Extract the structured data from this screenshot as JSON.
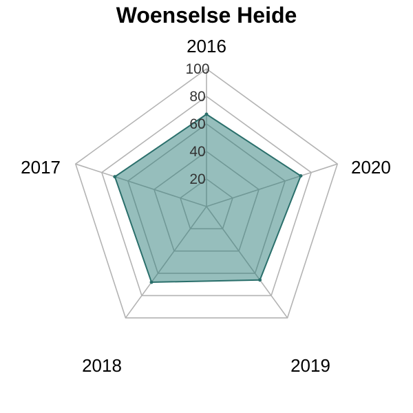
{
  "chart_data": {
    "type": "radar",
    "title": "Woenselse Heide",
    "axes": [
      "2016",
      "2017",
      "2018",
      "2019",
      "2020"
    ],
    "ticks": [
      "20",
      "40",
      "60",
      "80",
      "100"
    ],
    "range": [
      0,
      100
    ],
    "series": [
      {
        "values": [
          67,
          72,
          66,
          68,
          70
        ]
      }
    ],
    "colors": {
      "fill": "#2e7d7a",
      "stroke": "#2a6f6b",
      "grid": "#b3b3b3"
    },
    "grid": true
  }
}
